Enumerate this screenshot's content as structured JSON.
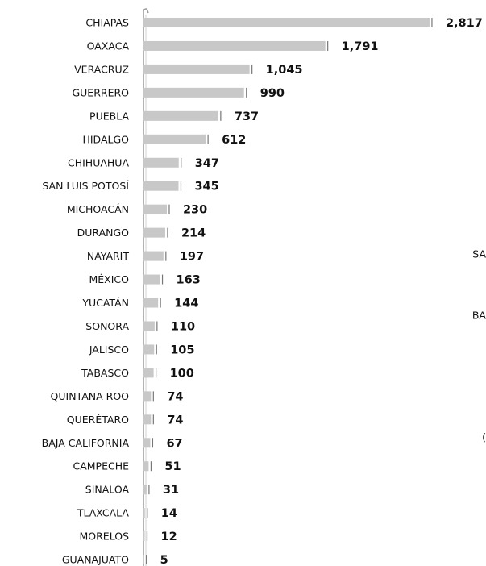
{
  "chart_data": {
    "type": "bar",
    "orientation": "horizontal",
    "categories": [
      "CHIAPAS",
      "OAXACA",
      "VERACRUZ",
      "GUERRERO",
      "PUEBLA",
      "HIDALGO",
      "CHIHUAHUA",
      "SAN LUIS POTOSÍ",
      "MICHOACÁN",
      "DURANGO",
      "NAYARIT",
      "MÉXICO",
      "YUCATÁN",
      "SONORA",
      "JALISCO",
      "TABASCO",
      "QUINTANA ROO",
      "QUERÉTARO",
      "BAJA CALIFORNIA",
      "CAMPECHE",
      "SINALOA",
      "TLAXCALA",
      "MORELOS",
      "GUANAJUATO"
    ],
    "values": [
      2817,
      1791,
      1045,
      990,
      737,
      612,
      347,
      345,
      230,
      214,
      197,
      163,
      144,
      110,
      105,
      100,
      74,
      74,
      67,
      51,
      31,
      14,
      12,
      5
    ],
    "value_labels": [
      "2,817",
      "1,791",
      "1,045",
      "990",
      "737",
      "612",
      "347",
      "345",
      "230",
      "214",
      "197",
      "163",
      "144",
      "110",
      "105",
      "100",
      "74",
      "74",
      "67",
      "51",
      "31",
      "14",
      "12",
      "5"
    ],
    "color": "#c8c8c8",
    "xlim": [
      0,
      3000
    ],
    "annotations": [
      "SA",
      "BA",
      "("
    ]
  }
}
